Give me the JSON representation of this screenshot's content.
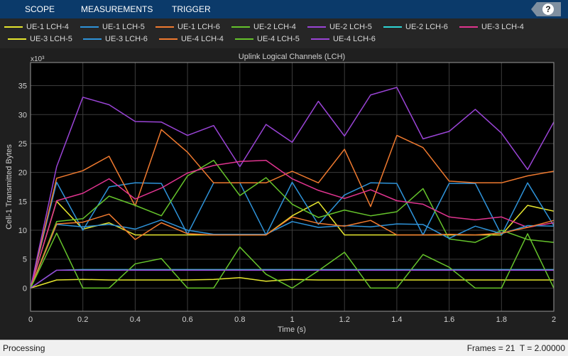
{
  "toolbar": {
    "tabs": [
      "SCOPE",
      "MEASUREMENTS",
      "TRIGGER"
    ],
    "help_label": "?"
  },
  "legend": [
    {
      "label": "UE-1 LCH-4",
      "color": "#e6e62e"
    },
    {
      "label": "UE-1 LCH-5",
      "color": "#2e93d9"
    },
    {
      "label": "UE-1 LCH-6",
      "color": "#f07a2f"
    },
    {
      "label": "UE-2 LCH-4",
      "color": "#65c32b"
    },
    {
      "label": "UE-2 LCH-5",
      "color": "#9a44d6"
    },
    {
      "label": "UE-2 LCH-6",
      "color": "#2ed6d6"
    },
    {
      "label": "UE-3 LCH-4",
      "color": "#e0348f"
    },
    {
      "label": "UE-3 LCH-5",
      "color": "#e6e62e"
    },
    {
      "label": "UE-3 LCH-6",
      "color": "#2e93d9"
    },
    {
      "label": "UE-4 LCH-4",
      "color": "#f07a2f"
    },
    {
      "label": "UE-4 LCH-5",
      "color": "#65c32b"
    },
    {
      "label": "UE-4 LCH-6",
      "color": "#9a44d6"
    }
  ],
  "chart_data": {
    "type": "line",
    "title": "Uplink Logical Channels (LCH)",
    "xlabel": "Time (s)",
    "ylabel": "Cell-1 Transmitted Bytes",
    "y_multiplier_label": "x10³",
    "xlim": [
      0,
      2
    ],
    "ylim": [
      -4,
      39
    ],
    "xticks": [
      0,
      0.2,
      0.4,
      0.6,
      0.8,
      1,
      1.2,
      1.4,
      1.6,
      1.8,
      2
    ],
    "xtick_labels": [
      "0",
      "0.2",
      "0.4",
      "0.6",
      "0.8",
      "1",
      "1.2",
      "1.4",
      "1.6",
      "1.8",
      "2"
    ],
    "yticks": [
      0,
      5,
      10,
      15,
      20,
      25,
      30,
      35
    ],
    "ytick_labels": [
      "0",
      "5",
      "10",
      "15",
      "20",
      "25",
      "30",
      "35"
    ],
    "grid": true,
    "x": [
      0,
      0.1,
      0.2,
      0.3,
      0.4,
      0.5,
      0.6,
      0.7,
      0.8,
      0.9,
      1,
      1.1,
      1.2,
      1.3,
      1.4,
      1.5,
      1.6,
      1.7,
      1.8,
      1.9,
      2
    ],
    "series": [
      {
        "name": "UE-1 LCH-4",
        "color": "#e6e62e",
        "values": [
          0,
          15.0,
          10.2,
          11.3,
          9.2,
          9.2,
          9.2,
          9.2,
          9.2,
          9.2,
          12.5,
          14.9,
          9.2,
          9.2,
          9.2,
          9.2,
          9.2,
          9.2,
          9.2,
          14.3,
          13.3
        ]
      },
      {
        "name": "UE-1 LCH-5",
        "color": "#2e93d9",
        "values": [
          0,
          18.3,
          10.0,
          17.5,
          18.2,
          18.1,
          9.3,
          18.2,
          18.2,
          9.2,
          18.3,
          11.0,
          16.1,
          18.2,
          18.1,
          9.2,
          18.1,
          18.1,
          9.2,
          18.2,
          10.8
        ]
      },
      {
        "name": "UE-1 LCH-6",
        "color": "#f07a2f",
        "values": [
          0,
          19.0,
          20.3,
          22.8,
          14.2,
          27.4,
          23.5,
          18.2,
          18.2,
          18.2,
          20.2,
          18.2,
          24.0,
          14.1,
          26.4,
          24.3,
          18.5,
          18.2,
          18.2,
          19.4,
          20.2
        ]
      },
      {
        "name": "UE-2 LCH-4",
        "color": "#65c32b",
        "values": [
          0,
          11.5,
          12.0,
          15.9,
          14.3,
          12.5,
          19.4,
          22.1,
          16.0,
          19.1,
          14.5,
          12.2,
          13.5,
          12.5,
          13.2,
          17.2,
          8.5,
          7.9,
          10.0,
          8.4,
          7.9
        ]
      },
      {
        "name": "UE-2 LCH-5",
        "color": "#9a44d6",
        "values": [
          0,
          21.0,
          33.0,
          31.7,
          28.8,
          28.7,
          26.4,
          28.1,
          21.0,
          28.3,
          25.2,
          32.3,
          26.3,
          33.4,
          34.7,
          25.8,
          27.1,
          30.9,
          26.8,
          20.5,
          28.7
        ]
      },
      {
        "name": "UE-2 LCH-6",
        "color": "#2ed6d6",
        "values": [
          0,
          3.1,
          3.2,
          3.2,
          3.2,
          3.2,
          3.2,
          3.2,
          3.2,
          3.2,
          3.2,
          3.2,
          3.2,
          3.2,
          3.2,
          3.2,
          3.2,
          3.2,
          3.2,
          3.2,
          3.2
        ]
      },
      {
        "name": "UE-3 LCH-4",
        "color": "#e0348f",
        "values": [
          0,
          15.1,
          16.4,
          18.9,
          15.4,
          17.3,
          19.9,
          21.2,
          21.9,
          22.1,
          18.9,
          16.9,
          15.5,
          17.0,
          15.1,
          14.5,
          12.3,
          11.8,
          12.3,
          10.5,
          11.3
        ]
      },
      {
        "name": "UE-3 LCH-5",
        "color": "#e6e62e",
        "values": [
          0,
          1.4,
          1.5,
          1.4,
          1.4,
          1.4,
          1.4,
          1.5,
          1.8,
          1.2,
          1.5,
          1.4,
          1.4,
          1.4,
          1.4,
          1.4,
          1.4,
          1.4,
          1.4,
          1.4,
          1.4
        ]
      },
      {
        "name": "UE-3 LCH-6",
        "color": "#2e93d9",
        "values": [
          0,
          11.0,
          10.6,
          11.0,
          10.2,
          11.8,
          10.0,
          9.3,
          9.3,
          9.3,
          11.5,
          10.5,
          10.8,
          10.6,
          11.1,
          11.0,
          8.6,
          10.7,
          9.4,
          10.8,
          10.7
        ]
      },
      {
        "name": "UE-4 LCH-4",
        "color": "#f07a2f",
        "values": [
          0,
          11.1,
          11.4,
          12.8,
          8.4,
          11.3,
          9.4,
          9.2,
          9.2,
          9.2,
          12.3,
          11.2,
          10.7,
          11.7,
          9.2,
          9.2,
          9.3,
          9.2,
          9.5,
          10.5,
          11.7
        ]
      },
      {
        "name": "UE-4 LCH-5",
        "color": "#65c32b",
        "values": [
          0,
          9.5,
          0,
          0,
          4.2,
          5.1,
          0,
          0,
          7.1,
          2.4,
          0,
          3.0,
          6.2,
          0,
          0,
          5.8,
          3.6,
          0,
          0,
          9.4,
          0
        ]
      },
      {
        "name": "UE-4 LCH-6",
        "color": "#9a44d6",
        "values": [
          0,
          3.1,
          3.1,
          3.1,
          3.1,
          3.1,
          3.1,
          3.1,
          3.1,
          3.1,
          3.1,
          3.1,
          3.1,
          3.1,
          3.1,
          3.1,
          3.1,
          3.1,
          3.1,
          3.1,
          3.1
        ]
      }
    ]
  },
  "status": {
    "left": "Processing",
    "right": "Frames = 21  T = 2.00000"
  }
}
